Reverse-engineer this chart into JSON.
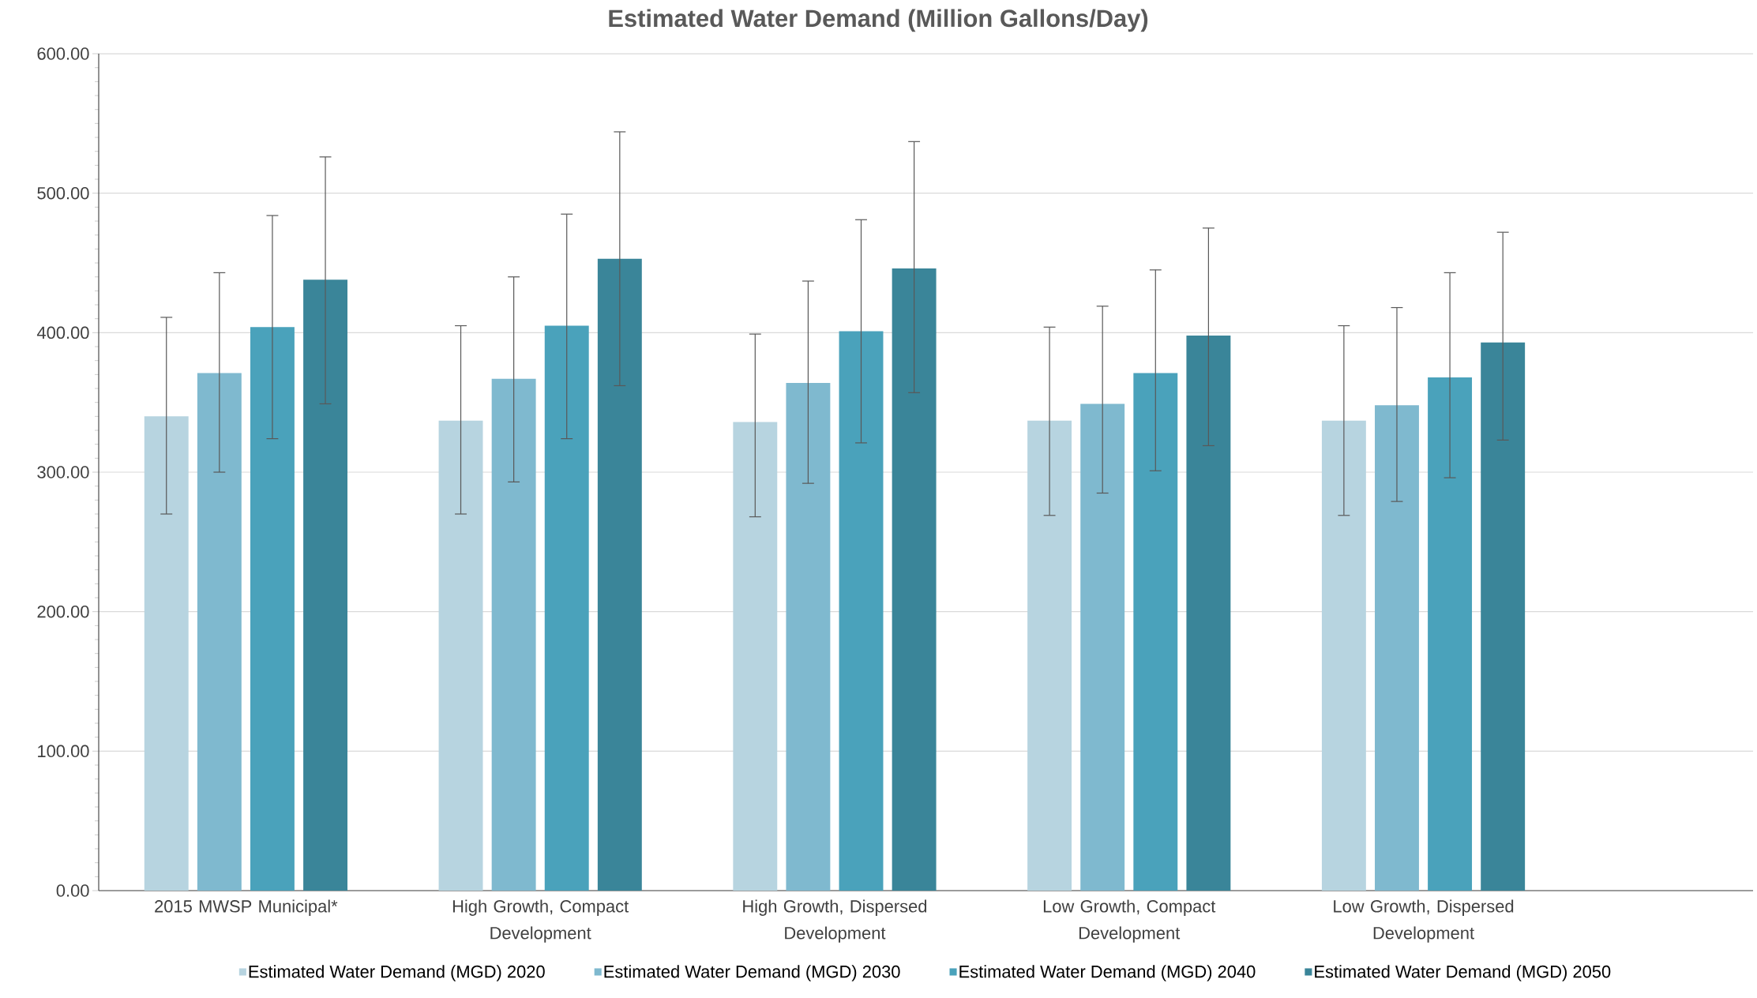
{
  "chart_data": {
    "type": "bar",
    "title": "Estimated Water Demand (Million Gallons/Day)",
    "categories": [
      "2015 MWSP Municipal*",
      "High Growth, Compact Development",
      "High Growth, Dispersed Development",
      "Low Growth, Compact Development",
      "Low Growth, Dispersed Development"
    ],
    "series": [
      {
        "name": "Estimated Water Demand (MGD) 2020",
        "color": "#b7d4e0",
        "values": [
          340,
          337,
          336,
          337,
          337
        ],
        "errors": [
          [
            270,
            411
          ],
          [
            270,
            405
          ],
          [
            268,
            399
          ],
          [
            269,
            404
          ],
          [
            269,
            405
          ]
        ]
      },
      {
        "name": "Estimated Water Demand (MGD) 2030",
        "color": "#7fb9cf",
        "values": [
          371,
          367,
          364,
          349,
          348
        ],
        "errors": [
          [
            300,
            443
          ],
          [
            293,
            440
          ],
          [
            292,
            437
          ],
          [
            285,
            419
          ],
          [
            279,
            418
          ]
        ]
      },
      {
        "name": "Estimated Water Demand (MGD) 2040",
        "color": "#4aa2bb",
        "values": [
          404,
          405,
          401,
          371,
          368
        ],
        "errors": [
          [
            324,
            484
          ],
          [
            324,
            485
          ],
          [
            321,
            481
          ],
          [
            301,
            445
          ],
          [
            296,
            443
          ]
        ]
      },
      {
        "name": "Estimated Water Demand (MGD) 2050",
        "color": "#3a8599",
        "values": [
          438,
          453,
          446,
          398,
          393
        ],
        "errors": [
          [
            349,
            526
          ],
          [
            362,
            544
          ],
          [
            357,
            537
          ],
          [
            319,
            475
          ],
          [
            323,
            472
          ]
        ]
      }
    ],
    "ylim": [
      0,
      600
    ],
    "yticks": [
      {
        "value": 0,
        "label": "0.00"
      },
      {
        "value": 100,
        "label": "100.00"
      },
      {
        "value": 200,
        "label": "200.00"
      },
      {
        "value": 300,
        "label": "300.00"
      },
      {
        "value": 400,
        "label": "400.00"
      },
      {
        "value": 500,
        "label": "500.00"
      },
      {
        "value": 600,
        "label": "600.00"
      }
    ],
    "grid": "y",
    "legend": "bottom"
  }
}
